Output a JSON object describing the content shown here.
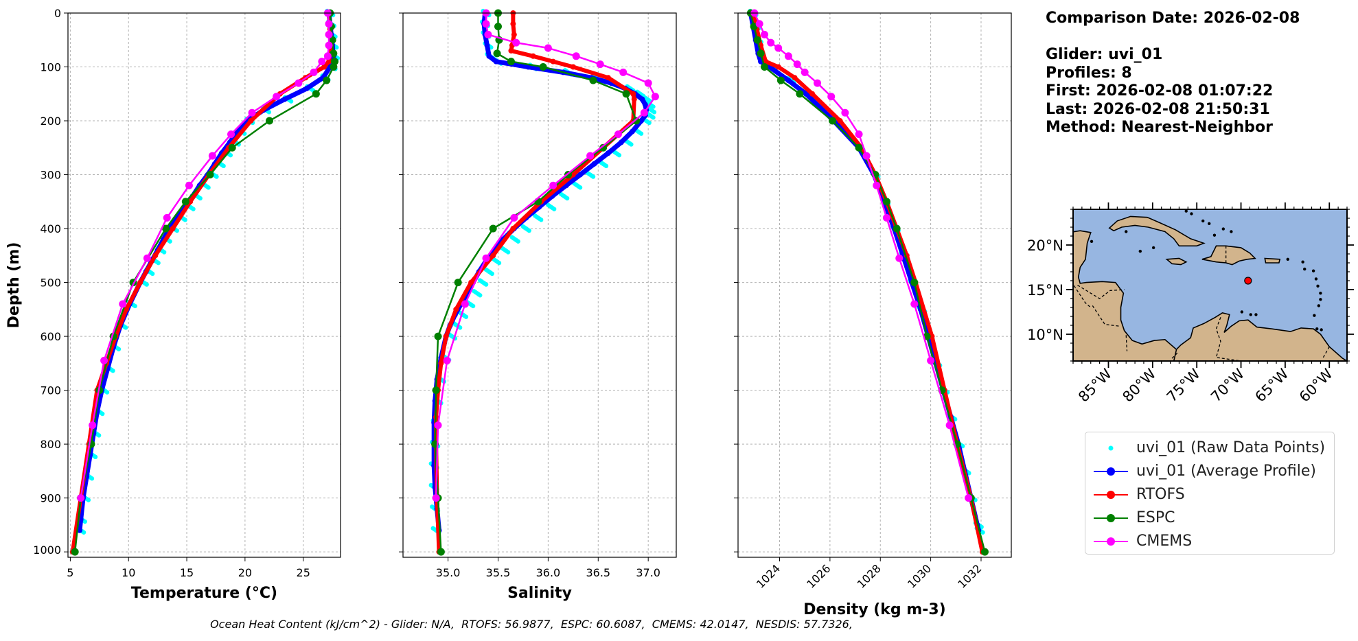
{
  "info": {
    "comparison_date": "Comparison Date: 2026-02-08",
    "glider": "Glider: uvi_01",
    "profiles": "Profiles: 8",
    "first": "First: 2026-02-08 01:07:22",
    "last": "Last: 2026-02-08 21:50:31",
    "method": "Method: Nearest-Neighbor"
  },
  "footer": "Ocean Heat Content (kJ/cm^2) - Glider: N/A,  RTOFS: 56.9877,  ESPC: 60.6087,  CMEMS: 42.0147,  NESDIS: 57.7326,",
  "legend": [
    {
      "label": "uvi_01 (Raw Data Points)",
      "color": "#00ffff",
      "style": "dot"
    },
    {
      "label": "uvi_01 (Average Profile)",
      "color": "#0000ff",
      "style": "line-marker"
    },
    {
      "label": "RTOFS",
      "color": "#ff0000",
      "style": "line-marker"
    },
    {
      "label": "ESPC",
      "color": "#008000",
      "style": "line-marker"
    },
    {
      "label": "CMEMS",
      "color": "#ff00ff",
      "style": "line-marker"
    }
  ],
  "map": {
    "ocean_color": "#97b6e1",
    "land_color": "#d2b48c",
    "lon_range": [
      -89,
      -58
    ],
    "lat_range": [
      7,
      24
    ],
    "xticks": [
      -85,
      -80,
      -75,
      -70,
      -65,
      -60
    ],
    "xtick_labels": [
      "85°W",
      "80°W",
      "75°W",
      "70°W",
      "65°W",
      "60°W"
    ],
    "yticks": [
      10,
      15,
      20
    ],
    "ytick_labels": [
      "10°N",
      "15°N",
      "20°N"
    ],
    "glider_location": {
      "lon": -69.2,
      "lat": 16.0,
      "color": "#ff0000"
    }
  },
  "chart_data": [
    {
      "type": "line",
      "xlabel": "Temperature (°C)",
      "ylabel": "Depth (m)",
      "xlim": [
        4.8,
        28.2
      ],
      "ylim": [
        1010,
        0
      ],
      "xticks": [
        5,
        10,
        15,
        20,
        25
      ],
      "yticks": [
        0,
        100,
        200,
        300,
        400,
        500,
        600,
        700,
        800,
        900,
        1000
      ],
      "grid": true,
      "series": [
        {
          "name": "uvi_01 (Raw Data Points)",
          "color": "#00ffff",
          "depth": [
            0,
            20,
            40,
            60,
            80,
            100,
            120,
            140,
            160,
            180,
            200,
            220,
            240,
            260,
            280,
            300,
            320,
            340,
            360,
            380,
            400,
            420,
            440,
            460,
            480,
            500,
            540,
            580,
            620,
            660,
            700,
            740,
            780,
            820,
            860,
            900,
            940,
            960
          ],
          "values": [
            27.3,
            27.4,
            27.5,
            27.6,
            27.7,
            27.5,
            26.9,
            25.6,
            23.7,
            21.8,
            20.4,
            19.7,
            19.2,
            18.5,
            17.9,
            17.3,
            16.6,
            15.9,
            15.3,
            14.6,
            13.9,
            13.3,
            12.8,
            12.3,
            11.8,
            11.3,
            10.3,
            9.5,
            8.9,
            8.4,
            7.9,
            7.5,
            7.2,
            6.9,
            6.6,
            6.3,
            6.0,
            5.9
          ]
        },
        {
          "name": "uvi_01 (Average Profile)",
          "color": "#0000ff",
          "depth": [
            0,
            20,
            40,
            60,
            80,
            100,
            120,
            140,
            160,
            180,
            200,
            220,
            240,
            260,
            280,
            300,
            320,
            340,
            360,
            380,
            400,
            420,
            440,
            460,
            480,
            500,
            540,
            580,
            620,
            660,
            700,
            740,
            780,
            820,
            860,
            900,
            940,
            960
          ],
          "values": [
            27.2,
            27.3,
            27.4,
            27.5,
            27.6,
            27.3,
            26.7,
            25.3,
            23.4,
            21.6,
            20.2,
            19.3,
            18.7,
            18.0,
            17.4,
            16.8,
            16.1,
            15.5,
            14.9,
            14.2,
            13.5,
            13.0,
            12.5,
            12.0,
            11.5,
            11.0,
            10.1,
            9.3,
            8.7,
            8.2,
            7.7,
            7.3,
            7.0,
            6.7,
            6.4,
            6.1,
            5.9,
            5.8
          ]
        },
        {
          "name": "RTOFS",
          "color": "#ff0000",
          "depth": [
            0,
            30,
            60,
            90,
            100,
            120,
            150,
            200,
            250,
            300,
            350,
            400,
            450,
            500,
            550,
            600,
            650,
            700,
            800,
            900,
            1000
          ],
          "values": [
            27.2,
            27.3,
            27.4,
            27.2,
            26.8,
            25.2,
            23.0,
            20.5,
            18.6,
            16.9,
            15.3,
            13.8,
            12.3,
            11.0,
            9.8,
            8.9,
            8.1,
            7.3,
            6.6,
            5.9,
            5.2
          ]
        },
        {
          "name": "ESPC",
          "color": "#008000",
          "depth": [
            0,
            25,
            50,
            75,
            90,
            100,
            125,
            150,
            200,
            250,
            300,
            350,
            400,
            500,
            600,
            700,
            800,
            900,
            1000
          ],
          "values": [
            27.3,
            27.4,
            27.5,
            27.6,
            27.7,
            27.6,
            27.0,
            26.1,
            22.1,
            18.9,
            17.0,
            14.9,
            13.2,
            10.4,
            8.7,
            7.5,
            6.8,
            5.9,
            5.4
          ]
        },
        {
          "name": "CMEMS",
          "color": "#ff00ff",
          "depth": [
            0,
            20,
            40,
            60,
            80,
            90,
            110,
            130,
            155,
            185,
            225,
            265,
            320,
            380,
            455,
            540,
            645,
            765,
            900
          ],
          "values": [
            27.1,
            27.2,
            27.2,
            27.2,
            27.1,
            26.6,
            25.9,
            24.6,
            22.7,
            20.6,
            18.8,
            17.2,
            15.2,
            13.3,
            11.6,
            9.5,
            7.9,
            6.9,
            5.9
          ]
        }
      ]
    },
    {
      "type": "line",
      "xlabel": "Salinity",
      "xlim": [
        34.55,
        37.28
      ],
      "ylim": [
        1010,
        0
      ],
      "xticks": [
        35.0,
        35.5,
        36.0,
        36.5,
        37.0
      ],
      "xtick_labels": [
        "35.0",
        "35.5",
        "36.0",
        "36.5",
        "37.0"
      ],
      "yticks": [
        0,
        100,
        200,
        300,
        400,
        500,
        600,
        700,
        800,
        900,
        1000
      ],
      "grid": true,
      "series": [
        {
          "name": "uvi_01 (Raw Data Points)",
          "color": "#00ffff",
          "depth": [
            0,
            20,
            40,
            60,
            80,
            90,
            100,
            110,
            120,
            130,
            140,
            150,
            160,
            170,
            180,
            190,
            200,
            220,
            240,
            260,
            280,
            300,
            320,
            340,
            360,
            380,
            400,
            420,
            440,
            460,
            480,
            500,
            520,
            540,
            560,
            580,
            600,
            640,
            680,
            720,
            760,
            800,
            840,
            880,
            920,
            960
          ],
          "values": [
            35.38,
            35.37,
            35.38,
            35.4,
            35.42,
            35.5,
            35.85,
            36.2,
            36.48,
            36.68,
            36.82,
            36.92,
            36.99,
            37.02,
            37.03,
            37.02,
            36.98,
            36.9,
            36.8,
            36.68,
            36.55,
            36.42,
            36.29,
            36.16,
            36.03,
            35.9,
            35.78,
            35.67,
            35.57,
            35.48,
            35.41,
            35.35,
            35.29,
            35.22,
            35.15,
            35.09,
            35.04,
            34.98,
            34.93,
            34.9,
            34.88,
            34.87,
            34.86,
            34.86,
            34.87,
            34.88
          ]
        },
        {
          "name": "uvi_01 (Average Profile)",
          "color": "#0000ff",
          "depth": [
            0,
            20,
            40,
            60,
            80,
            90,
            100,
            110,
            120,
            130,
            140,
            150,
            160,
            170,
            180,
            190,
            200,
            220,
            240,
            260,
            280,
            300,
            320,
            340,
            360,
            380,
            400,
            420,
            440,
            460,
            480,
            500,
            520,
            540,
            560,
            580,
            600,
            640,
            680,
            720,
            760,
            800,
            840,
            880,
            920,
            960
          ],
          "values": [
            35.37,
            35.36,
            35.37,
            35.39,
            35.41,
            35.48,
            35.8,
            36.15,
            36.43,
            36.63,
            36.77,
            36.87,
            36.94,
            36.97,
            36.98,
            36.97,
            36.93,
            36.84,
            36.73,
            36.6,
            36.46,
            36.32,
            36.18,
            36.04,
            35.91,
            35.78,
            35.66,
            35.55,
            35.46,
            35.38,
            35.31,
            35.25,
            35.19,
            35.13,
            35.07,
            35.02,
            34.98,
            34.93,
            34.89,
            34.87,
            34.86,
            34.86,
            34.86,
            34.87,
            34.89,
            34.91
          ]
        },
        {
          "name": "RTOFS",
          "color": "#ff0000",
          "depth": [
            0,
            20,
            40,
            60,
            70,
            80,
            90,
            100,
            120,
            150,
            160,
            200,
            250,
            300,
            350,
            400,
            450,
            500,
            550,
            600,
            650,
            700,
            750,
            800,
            900,
            1000
          ],
          "values": [
            35.65,
            35.65,
            35.66,
            35.64,
            35.63,
            35.85,
            36.05,
            36.25,
            36.6,
            36.85,
            36.86,
            36.85,
            36.55,
            36.25,
            35.93,
            35.65,
            35.45,
            35.23,
            35.08,
            34.98,
            34.93,
            34.9,
            34.88,
            34.88,
            34.89,
            34.91
          ]
        },
        {
          "name": "ESPC",
          "color": "#008000",
          "depth": [
            0,
            25,
            50,
            75,
            90,
            100,
            125,
            150,
            200,
            250,
            300,
            350,
            400,
            500,
            600,
            700,
            800,
            900,
            1000
          ],
          "values": [
            35.5,
            35.5,
            35.51,
            35.49,
            35.63,
            35.95,
            36.45,
            36.78,
            36.88,
            36.55,
            36.2,
            35.9,
            35.45,
            35.1,
            34.9,
            34.88,
            34.87,
            34.9,
            34.93
          ]
        },
        {
          "name": "CMEMS",
          "color": "#ff00ff",
          "depth": [
            0,
            20,
            40,
            55,
            65,
            80,
            95,
            110,
            130,
            155,
            185,
            225,
            265,
            320,
            380,
            455,
            540,
            645,
            765,
            900
          ],
          "values": [
            35.38,
            35.38,
            35.4,
            35.68,
            36.0,
            36.28,
            36.52,
            36.75,
            37.0,
            37.07,
            36.96,
            36.7,
            36.42,
            36.05,
            35.66,
            35.38,
            35.17,
            34.99,
            34.9,
            34.88
          ]
        }
      ]
    },
    {
      "type": "line",
      "xlabel": "Density (kg m-3)",
      "xlim": [
        1022.35,
        1033.2
      ],
      "ylim": [
        1010,
        0
      ],
      "xticks": [
        1024,
        1026,
        1028,
        1030,
        1032
      ],
      "yticks": [
        0,
        100,
        200,
        300,
        400,
        500,
        600,
        700,
        800,
        900,
        1000
      ],
      "grid": true,
      "series": [
        {
          "name": "uvi_01 (Raw Data Points)",
          "color": "#00ffff",
          "depth": [
            0,
            25,
            50,
            75,
            90,
            100,
            125,
            150,
            175,
            200,
            250,
            300,
            350,
            400,
            450,
            500,
            550,
            600,
            650,
            700,
            750,
            800,
            850,
            900,
            950,
            960
          ],
          "values": [
            1022.95,
            1023.05,
            1023.15,
            1023.25,
            1023.35,
            1023.7,
            1024.45,
            1025.15,
            1025.7,
            1026.2,
            1027.2,
            1027.8,
            1028.2,
            1028.6,
            1028.95,
            1029.3,
            1029.65,
            1029.95,
            1030.25,
            1030.55,
            1030.85,
            1031.15,
            1031.4,
            1031.65,
            1031.9,
            1031.95
          ]
        },
        {
          "name": "uvi_01 (Average Profile)",
          "color": "#0000ff",
          "depth": [
            0,
            25,
            50,
            75,
            90,
            100,
            125,
            150,
            175,
            200,
            250,
            300,
            350,
            400,
            450,
            500,
            550,
            600,
            650,
            700,
            750,
            800,
            850,
            900,
            950,
            960
          ],
          "values": [
            1022.85,
            1022.95,
            1023.05,
            1023.15,
            1023.25,
            1023.6,
            1024.35,
            1025.05,
            1025.6,
            1026.15,
            1027.15,
            1027.75,
            1028.15,
            1028.55,
            1028.9,
            1029.25,
            1029.6,
            1029.9,
            1030.2,
            1030.5,
            1030.8,
            1031.1,
            1031.35,
            1031.6,
            1031.85,
            1031.9
          ]
        },
        {
          "name": "RTOFS",
          "color": "#ff0000",
          "depth": [
            0,
            30,
            60,
            90,
            100,
            120,
            150,
            200,
            250,
            300,
            350,
            400,
            450,
            500,
            600,
            700,
            800,
            900,
            1000
          ],
          "values": [
            1022.95,
            1023.1,
            1023.25,
            1023.45,
            1023.95,
            1024.6,
            1025.3,
            1026.4,
            1027.25,
            1027.8,
            1028.25,
            1028.65,
            1029.05,
            1029.4,
            1030.05,
            1030.55,
            1031.05,
            1031.6,
            1032.05
          ]
        },
        {
          "name": "ESPC",
          "color": "#008000",
          "depth": [
            0,
            25,
            50,
            75,
            100,
            125,
            150,
            200,
            250,
            300,
            350,
            400,
            500,
            600,
            700,
            800,
            900,
            1000
          ],
          "values": [
            1022.85,
            1022.98,
            1023.12,
            1023.25,
            1023.4,
            1024.05,
            1024.8,
            1026.1,
            1027.15,
            1027.8,
            1028.25,
            1028.65,
            1029.35,
            1029.85,
            1030.45,
            1031.05,
            1031.6,
            1032.15
          ]
        },
        {
          "name": "CMEMS",
          "color": "#ff00ff",
          "depth": [
            0,
            20,
            40,
            55,
            65,
            80,
            95,
            110,
            130,
            155,
            185,
            225,
            265,
            320,
            380,
            455,
            540,
            645,
            765,
            900
          ],
          "values": [
            1023.0,
            1023.2,
            1023.4,
            1023.65,
            1023.95,
            1024.35,
            1024.7,
            1025.0,
            1025.5,
            1026.05,
            1026.6,
            1027.15,
            1027.45,
            1027.85,
            1028.25,
            1028.75,
            1029.35,
            1030.0,
            1030.75,
            1031.5
          ]
        }
      ]
    }
  ]
}
